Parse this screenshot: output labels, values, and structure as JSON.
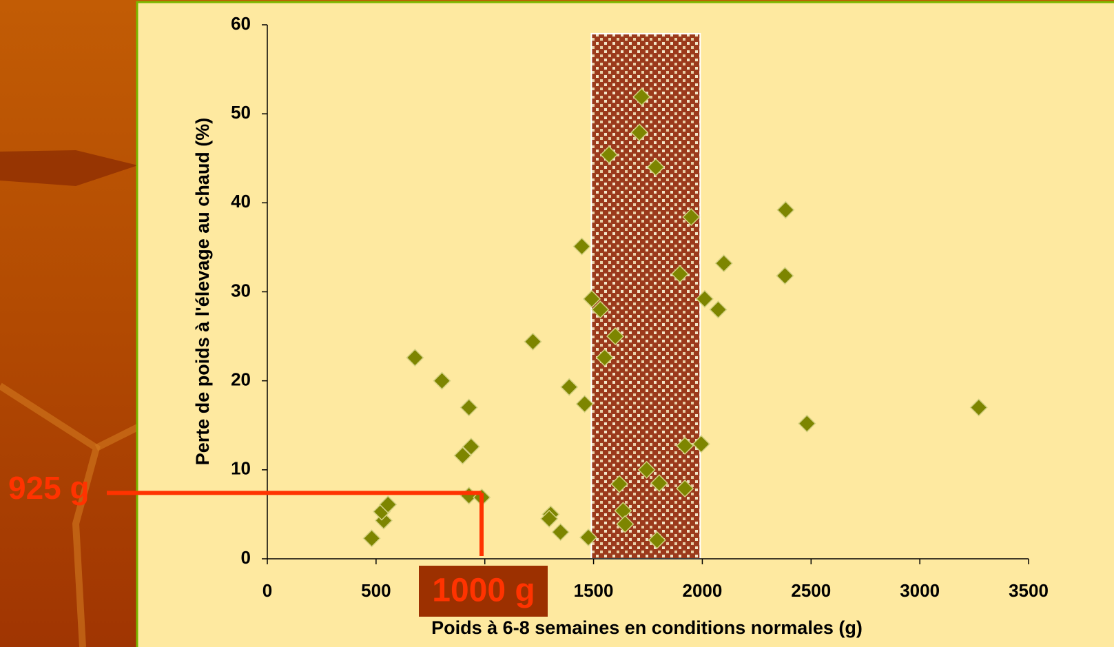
{
  "chart_data": {
    "type": "scatter",
    "x_label": "Poids à 6-8 semaines en conditions normales (g)",
    "y_label": "Perte de poids à l'élevage au chaud (%)",
    "xlim": [
      0,
      3500
    ],
    "xticks": [
      0,
      500,
      1000,
      1500,
      2000,
      2500,
      3000,
      3500
    ],
    "ylim": [
      0,
      60
    ],
    "yticks": [
      0,
      10,
      20,
      30,
      40,
      50,
      60
    ],
    "grid": false,
    "series": [
      {
        "color": "#7d8500",
        "x": [
          480,
          535,
          526,
          555,
          679,
          803,
          927,
          898,
          937,
          927,
          986,
          1221,
          1303,
          1296,
          1348,
          1388,
          1446,
          1459,
          1476,
          1492,
          1531,
          1551,
          1571,
          1600,
          1619,
          1636,
          1645,
          1711,
          1721,
          1744,
          1786,
          1802,
          1792,
          1897,
          1920,
          1920,
          1949,
          1995,
          2011,
          2073,
          2099,
          2383,
          2380,
          2481,
          3271
        ],
        "values": [
          2.3,
          4.3,
          5.3,
          6.1,
          22.6,
          20.0,
          17.0,
          11.6,
          12.6,
          7.1,
          6.9,
          24.4,
          5.0,
          4.5,
          3.0,
          19.3,
          35.1,
          17.4,
          2.4,
          29.2,
          28.0,
          22.6,
          45.4,
          25.0,
          8.4,
          5.4,
          3.9,
          47.9,
          51.9,
          10.0,
          44.0,
          8.5,
          2.1,
          32.0,
          12.7,
          7.9,
          38.4,
          12.9,
          29.2,
          28.0,
          33.2,
          39.2,
          31.8,
          15.2,
          17.0
        ]
      }
    ],
    "highlight_band": {
      "x": [
        1490,
        1990
      ],
      "y": [
        0,
        59
      ]
    },
    "annotations": [
      {
        "text": "925 g",
        "y": 7.4,
        "color": "#ff3300"
      },
      {
        "text": "1000 g",
        "x": 985,
        "color": "#ff3300"
      }
    ]
  }
}
